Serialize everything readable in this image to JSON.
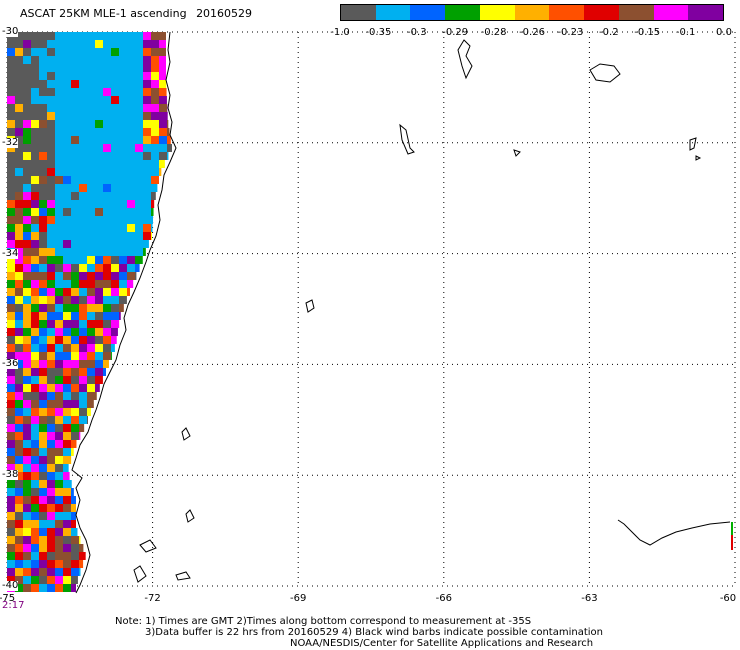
{
  "header": {
    "product": "ASCAT 25KM MLE-1 ascending",
    "date": "20160529"
  },
  "colorbar": {
    "labels": [
      "-1.0",
      "-0.35",
      "-0.3",
      "-0.29",
      "-0.28",
      "-0.26",
      "-0.23",
      "-0.2",
      "-0.15",
      "-0.1",
      "0.0"
    ],
    "colors": [
      "#5a5a5a",
      "#00b0f0",
      "#0064ff",
      "#00a000",
      "#ffff00",
      "#ffb000",
      "#ff5000",
      "#e00000",
      "#8c5030",
      "#ff00ff",
      "#8000a0"
    ]
  },
  "axes": {
    "lon_labels": [
      "-75",
      "-72",
      "-69",
      "-66",
      "-63",
      "-60"
    ],
    "lat_labels": [
      "-30",
      "-32",
      "-34",
      "-36",
      "-38",
      "-40"
    ],
    "lon_range": [
      -75,
      -60
    ],
    "lat_range": [
      -30,
      -40
    ]
  },
  "time_label": "2:17",
  "notes": [
    "Note: 1) Times are GMT 2)Times along bottom correspond to measurement at -35S",
    "3)Data buffer is 22 hrs from 20160529 4) Black wind barbs indicate possible contamination",
    "NOAA/NESDIS/Center for Satellite Applications and Research"
  ]
}
